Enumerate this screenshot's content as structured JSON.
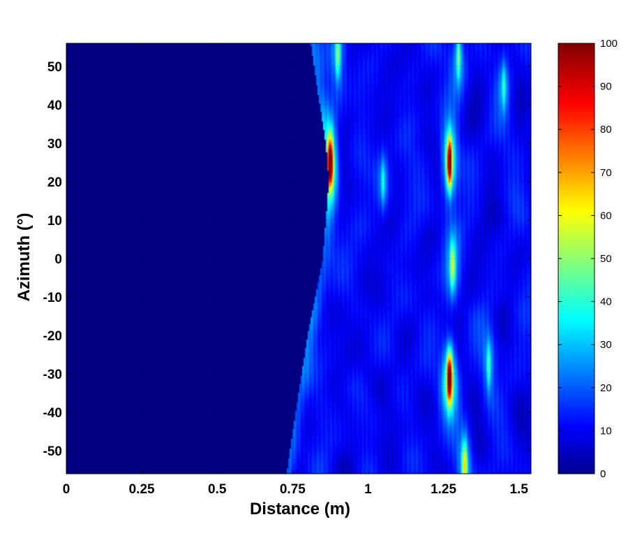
{
  "chart_data": {
    "type": "heatmap",
    "title": "",
    "xlabel": "Distance (m)",
    "ylabel": "Azimuth (°)",
    "xlim": [
      0,
      1.54
    ],
    "ylim": [
      -56,
      56
    ],
    "x_ticks": [
      0,
      0.25,
      0.5,
      0.75,
      1,
      1.25,
      1.5
    ],
    "x_tick_labels": [
      "0",
      "0.25",
      "0.5",
      "0.75",
      "1",
      "1.25",
      "1.5"
    ],
    "y_ticks": [
      50,
      40,
      30,
      20,
      10,
      0,
      -10,
      -20,
      -30,
      -40,
      -50
    ],
    "y_tick_labels": [
      "50",
      "40",
      "30",
      "20",
      "10",
      "0",
      "-10",
      "-20",
      "-30",
      "-40",
      "-50"
    ],
    "colorbar": {
      "range": [
        0,
        100
      ],
      "ticks": [
        0,
        10,
        20,
        30,
        40,
        50,
        60,
        70,
        80,
        90,
        100
      ],
      "tick_labels": [
        "0",
        "10",
        "20",
        "30",
        "40",
        "50",
        "60",
        "70",
        "80",
        "90",
        "100"
      ],
      "colormap": "jet"
    },
    "grid": true,
    "features": {
      "no_data_boundary": [
        {
          "azimuth": 56,
          "distance": 0.81
        },
        {
          "azimuth": 45,
          "distance": 0.83
        },
        {
          "azimuth": 30,
          "distance": 0.86
        },
        {
          "azimuth": 20,
          "distance": 0.87
        },
        {
          "azimuth": 0,
          "distance": 0.85
        },
        {
          "azimuth": -20,
          "distance": 0.8
        },
        {
          "azimuth": -40,
          "distance": 0.76
        },
        {
          "azimuth": -56,
          "distance": 0.73
        }
      ],
      "background_level": 10,
      "peaks": [
        {
          "distance": 0.875,
          "azimuth": 25,
          "value": 100
        },
        {
          "distance": 1.27,
          "azimuth": 25,
          "value": 100
        },
        {
          "distance": 1.27,
          "azimuth": -31,
          "value": 100
        },
        {
          "distance": 1.32,
          "azimuth": -54,
          "value": 55
        },
        {
          "distance": 1.28,
          "azimuth": -2,
          "value": 45
        },
        {
          "distance": 0.9,
          "azimuth": 53,
          "value": 40
        },
        {
          "distance": 1.3,
          "azimuth": 53,
          "value": 40
        },
        {
          "distance": 1.05,
          "azimuth": 20,
          "value": 30
        },
        {
          "distance": 1.4,
          "azimuth": -28,
          "value": 35
        },
        {
          "distance": 1.45,
          "azimuth": 45,
          "value": 30
        }
      ]
    }
  }
}
